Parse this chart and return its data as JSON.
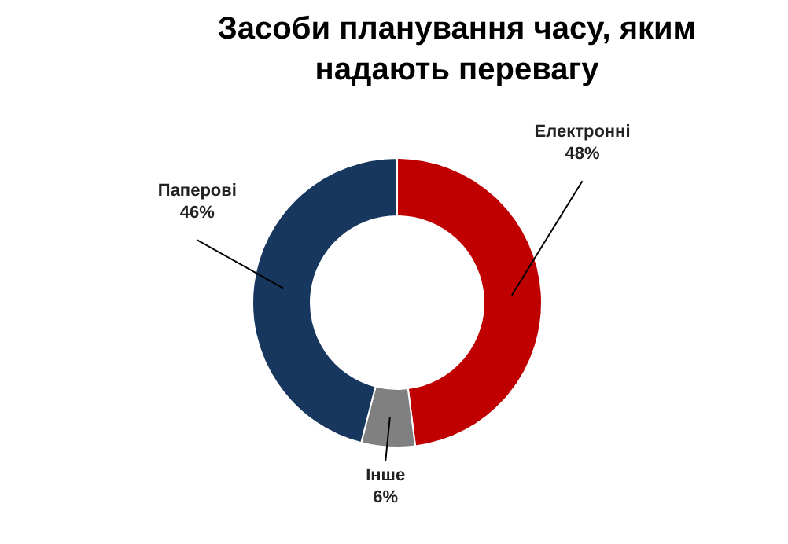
{
  "chart_data": {
    "type": "donut",
    "title": "Засоби планування часу, яким\nнадають перевагу",
    "categories": [
      "Електронні",
      "Інше",
      "Паперові"
    ],
    "values": [
      48,
      6,
      46
    ],
    "value_labels": [
      "48%",
      "6%",
      "46%"
    ],
    "colors": [
      "#c00000",
      "#808080",
      "#17375e"
    ]
  }
}
